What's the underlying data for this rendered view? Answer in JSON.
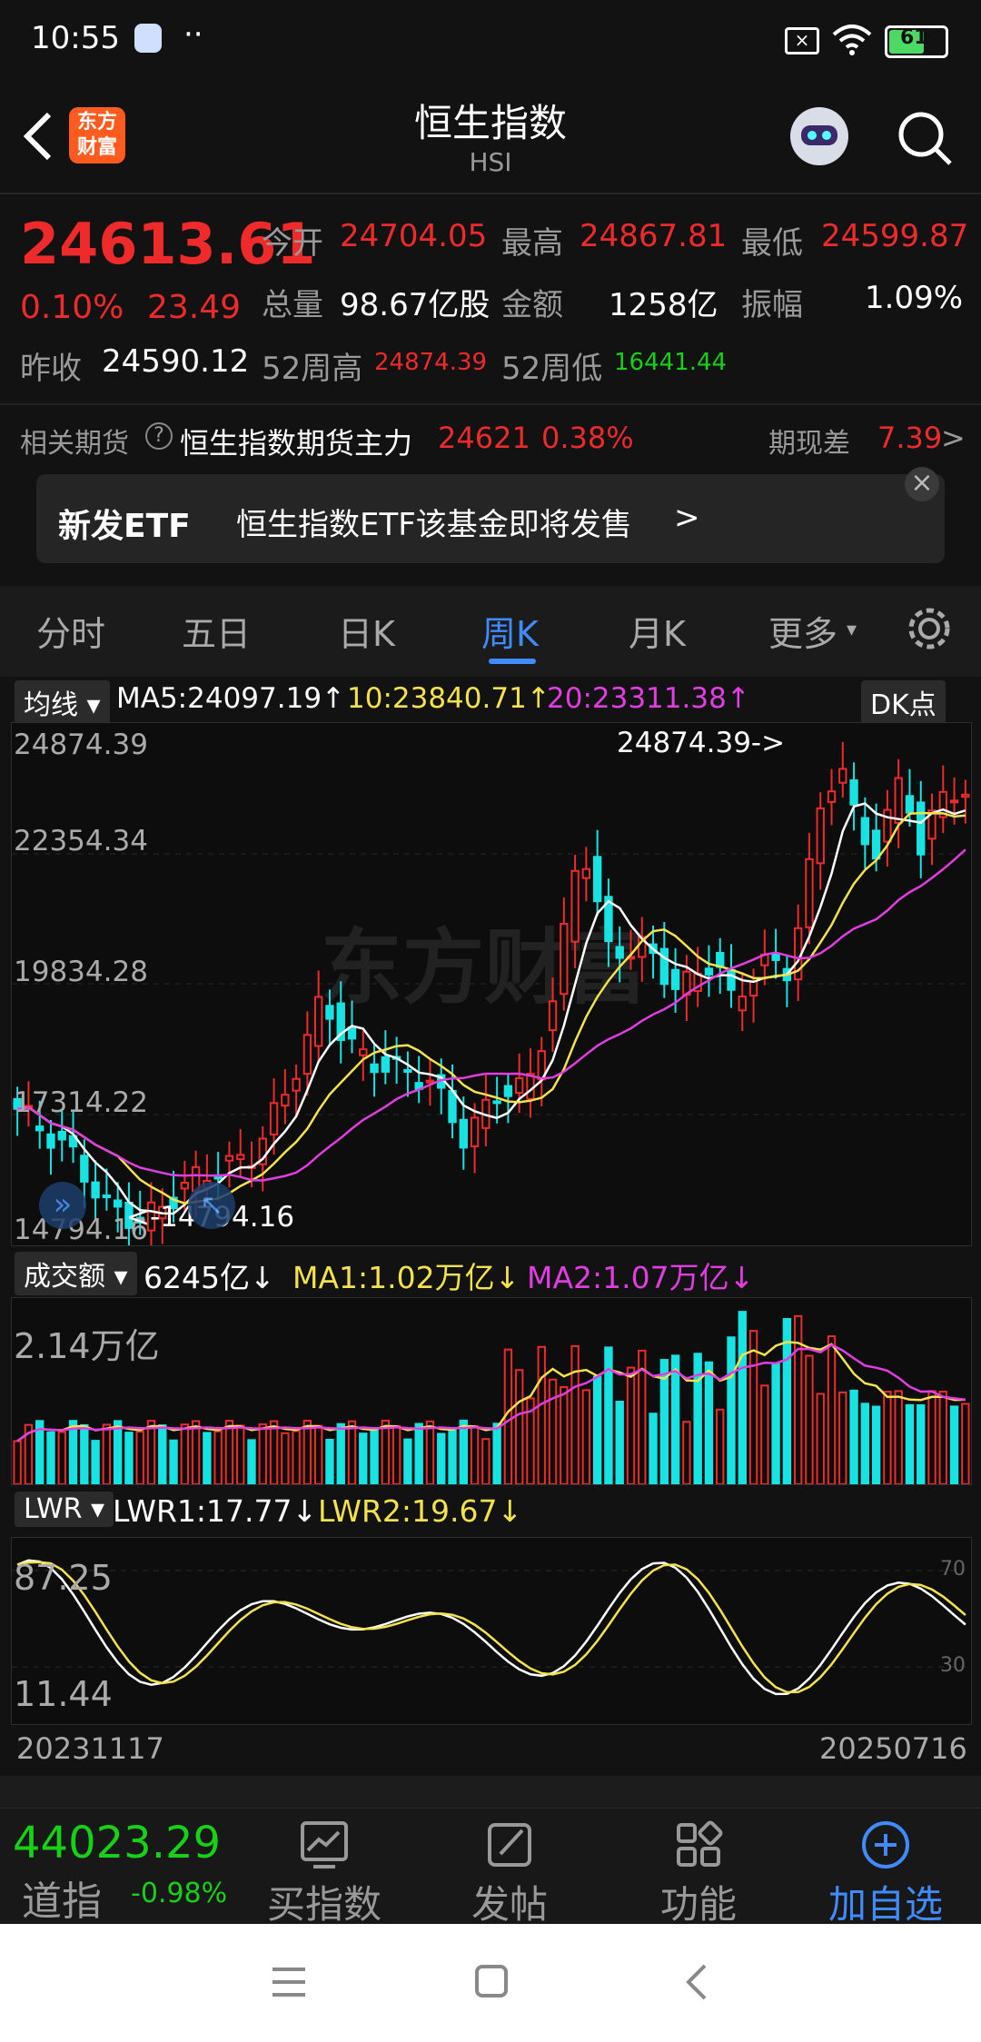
{
  "status_bar": {
    "time": "10:55",
    "battery": "61"
  },
  "header": {
    "title": "恒生指数",
    "subtitle": "HSI",
    "logo_line1": "东方",
    "logo_line2": "财富"
  },
  "quote": {
    "price": "24613.61",
    "change_pct": "0.10%",
    "change": "23.49",
    "open_label": "今开",
    "open": "24704.05",
    "high_label": "最高",
    "high": "24867.81",
    "low_label": "最低",
    "low": "24599.87",
    "volume_label": "总量",
    "volume": "98.67亿股",
    "amount_label": "金额",
    "amount": "1258亿",
    "amplitude_label": "振幅",
    "amplitude": "1.09%",
    "prev_close_label": "昨收",
    "prev_close": "24590.12",
    "w52_high_label": "52周高",
    "w52_high": "24874.39",
    "w52_low_label": "52周低",
    "w52_low": "16441.44"
  },
  "futures": {
    "label": "相关期货",
    "help": "?",
    "name": "恒生指数期货主力",
    "price": "24621",
    "pct": "0.38%",
    "basis_label": "期现差",
    "basis": "7.39",
    "arrow": ">"
  },
  "banner": {
    "tag": "新发ETF",
    "text": "恒生指数ETF该基金即将发售",
    "arrow": ">",
    "close": "×"
  },
  "tabs": [
    "分时",
    "五日",
    "日K",
    "周K",
    "月K",
    "更多"
  ],
  "active_tab": "周K",
  "main_chart": {
    "indicator": "均线",
    "ma5": "MA5:24097.19",
    "ma10": "10:23840.71",
    "ma20": "20:23311.38",
    "up": "↑",
    "dk": "DK点",
    "y_labels": [
      "24874.39",
      "22354.34",
      "19834.28",
      "17314.22",
      "14794.16"
    ],
    "max_label": "24874.39->",
    "min_label": "<-14794.16",
    "watermark": "东方财富"
  },
  "volume_chart": {
    "indicator": "成交额",
    "current": "6245亿",
    "ma1": "MA1:1.02万亿",
    "ma2": "MA2:1.07万亿",
    "down": "↓",
    "y_label": "2.14万亿"
  },
  "lwr_chart": {
    "indicator": "LWR",
    "lwr1": "LWR1:17.77",
    "lwr2": "LWR2:19.67",
    "down": "↓",
    "top_label": "87.25",
    "bottom_label": "11.44",
    "ref70": "70",
    "ref30": "30",
    "date_start": "20231117",
    "date_end": "20250716"
  },
  "bottom_bar": {
    "index_price": "44023.29",
    "index_name": "道指",
    "index_pct": "-0.98%",
    "items": [
      "买指数",
      "发帖",
      "功能",
      "加自选"
    ]
  },
  "colors": {
    "up": "#ee2a2a",
    "down": "#17e3e3",
    "accent": "#3f8bff"
  }
}
